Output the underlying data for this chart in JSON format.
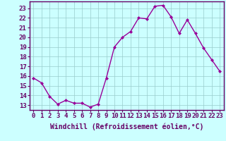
{
  "x": [
    0,
    1,
    2,
    3,
    4,
    5,
    6,
    7,
    8,
    9,
    10,
    11,
    12,
    13,
    14,
    15,
    16,
    17,
    18,
    19,
    20,
    21,
    22,
    23
  ],
  "y": [
    15.8,
    15.3,
    13.9,
    13.1,
    13.5,
    13.2,
    13.2,
    12.8,
    13.1,
    15.8,
    19.0,
    20.0,
    20.6,
    22.0,
    21.9,
    23.2,
    23.3,
    22.1,
    20.4,
    21.8,
    20.4,
    18.9,
    17.7,
    16.5
  ],
  "line_color": "#990099",
  "marker": "D",
  "marker_size": 2,
  "background_color": "#ccffff",
  "grid_color": "#99cccc",
  "xlabel": "Windchill (Refroidissement éolien,°C)",
  "xlabel_fontsize": 7,
  "ylim": [
    12.5,
    23.7
  ],
  "xlim": [
    -0.5,
    23.5
  ],
  "yticks": [
    13,
    14,
    15,
    16,
    17,
    18,
    19,
    20,
    21,
    22,
    23
  ],
  "xticks": [
    0,
    1,
    2,
    3,
    4,
    5,
    6,
    7,
    8,
    9,
    10,
    11,
    12,
    13,
    14,
    15,
    16,
    17,
    18,
    19,
    20,
    21,
    22,
    23
  ],
  "tick_color": "#660066",
  "spine_color": "#660066",
  "line_width": 1.0,
  "tick_fontsize": 6.5,
  "xlabel_color": "#660066"
}
